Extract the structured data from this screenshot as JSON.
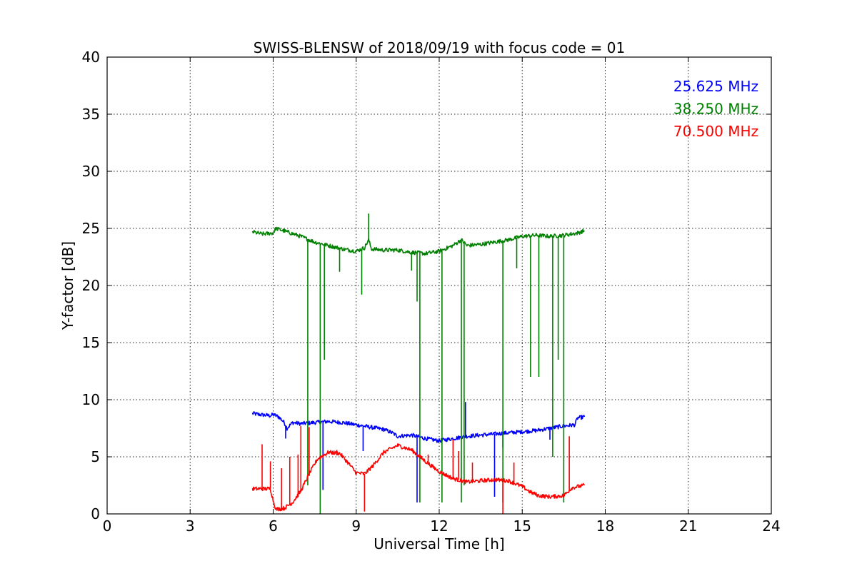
{
  "chart_data": {
    "type": "line",
    "title": "SWISS-BLENSW of 2018/09/19 with focus code = 01",
    "xlabel": "Universal Time [h]",
    "ylabel": "Y-factor [dB]",
    "xlim": [
      0,
      24
    ],
    "ylim": [
      0,
      40
    ],
    "xticks": [
      0,
      3,
      6,
      9,
      12,
      15,
      18,
      21,
      24
    ],
    "yticks": [
      0,
      5,
      10,
      15,
      20,
      25,
      30,
      35,
      40
    ],
    "grid": true,
    "legend_placement": "top-right",
    "series": [
      {
        "name": "25.625 MHz",
        "color": "#0000ff",
        "points": [
          [
            5.25,
            8.8
          ],
          [
            5.5,
            8.7
          ],
          [
            5.9,
            8.6
          ],
          [
            6.0,
            8.7
          ],
          [
            6.2,
            8.5
          ],
          [
            6.4,
            8.0
          ],
          [
            6.5,
            7.5
          ],
          [
            6.7,
            8.0
          ],
          [
            7.0,
            7.9
          ],
          [
            7.5,
            8.0
          ],
          [
            8.0,
            8.1
          ],
          [
            8.5,
            8.0
          ],
          [
            9.0,
            7.8
          ],
          [
            9.5,
            7.6
          ],
          [
            10.0,
            7.4
          ],
          [
            10.3,
            7.1
          ],
          [
            10.5,
            6.8
          ],
          [
            11.0,
            6.9
          ],
          [
            11.5,
            6.6
          ],
          [
            12.0,
            6.4
          ],
          [
            12.5,
            6.6
          ],
          [
            13.0,
            6.8
          ],
          [
            13.5,
            6.9
          ],
          [
            14.0,
            7.0
          ],
          [
            14.5,
            7.1
          ],
          [
            15.0,
            7.2
          ],
          [
            15.5,
            7.3
          ],
          [
            16.0,
            7.5
          ],
          [
            16.5,
            7.7
          ],
          [
            16.9,
            7.8
          ],
          [
            17.0,
            8.4
          ],
          [
            17.25,
            8.5
          ]
        ],
        "spikes": [
          [
            6.45,
            6.6
          ],
          [
            7.8,
            2.1
          ],
          [
            9.25,
            5.5
          ],
          [
            11.2,
            1.0
          ],
          [
            12.95,
            9.8
          ],
          [
            14.0,
            1.5
          ],
          [
            14.3,
            5.8
          ],
          [
            16.0,
            6.5
          ]
        ]
      },
      {
        "name": "38.250 MHz",
        "color": "#008000",
        "points": [
          [
            5.25,
            24.7
          ],
          [
            5.6,
            24.5
          ],
          [
            6.0,
            24.6
          ],
          [
            6.1,
            25.0
          ],
          [
            6.5,
            24.7
          ],
          [
            7.0,
            24.3
          ],
          [
            7.5,
            23.8
          ],
          [
            8.0,
            23.5
          ],
          [
            8.5,
            23.2
          ],
          [
            9.0,
            23.0
          ],
          [
            9.3,
            23.3
          ],
          [
            9.45,
            24.0
          ],
          [
            9.55,
            23.2
          ],
          [
            10.0,
            23.1
          ],
          [
            10.5,
            23.1
          ],
          [
            11.0,
            22.9
          ],
          [
            11.5,
            22.8
          ],
          [
            12.0,
            23.0
          ],
          [
            12.3,
            23.3
          ],
          [
            12.5,
            23.5
          ],
          [
            12.8,
            24.0
          ],
          [
            13.0,
            23.5
          ],
          [
            13.5,
            23.6
          ],
          [
            14.0,
            23.8
          ],
          [
            14.5,
            24.0
          ],
          [
            15.0,
            24.3
          ],
          [
            15.5,
            24.4
          ],
          [
            16.0,
            24.3
          ],
          [
            16.5,
            24.4
          ],
          [
            17.0,
            24.6
          ],
          [
            17.25,
            24.8
          ]
        ],
        "spikes": [
          [
            7.25,
            2.5
          ],
          [
            7.7,
            0.0
          ],
          [
            7.85,
            13.5
          ],
          [
            8.4,
            21.2
          ],
          [
            9.2,
            19.2
          ],
          [
            9.45,
            26.3
          ],
          [
            11.0,
            21.3
          ],
          [
            11.2,
            18.6
          ],
          [
            11.3,
            1.0
          ],
          [
            12.1,
            1.0
          ],
          [
            12.8,
            1.0
          ],
          [
            12.9,
            2.5
          ],
          [
            14.3,
            1.0
          ],
          [
            14.8,
            21.5
          ],
          [
            15.3,
            12.0
          ],
          [
            15.6,
            12.0
          ],
          [
            16.1,
            5.0
          ],
          [
            16.3,
            13.5
          ],
          [
            16.5,
            1.0
          ]
        ]
      },
      {
        "name": "70.500 MHz",
        "color": "#ff0000",
        "points": [
          [
            5.25,
            2.2
          ],
          [
            5.9,
            2.2
          ],
          [
            6.0,
            1.2
          ],
          [
            6.1,
            0.4
          ],
          [
            6.4,
            0.5
          ],
          [
            6.7,
            1.0
          ],
          [
            7.0,
            2.0
          ],
          [
            7.3,
            3.5
          ],
          [
            7.6,
            4.8
          ],
          [
            8.0,
            5.4
          ],
          [
            8.4,
            5.3
          ],
          [
            8.7,
            4.5
          ],
          [
            9.0,
            3.6
          ],
          [
            9.3,
            3.5
          ],
          [
            9.6,
            4.2
          ],
          [
            10.0,
            5.4
          ],
          [
            10.5,
            6.0
          ],
          [
            11.0,
            5.6
          ],
          [
            11.5,
            4.6
          ],
          [
            12.0,
            3.7
          ],
          [
            12.5,
            3.1
          ],
          [
            13.0,
            2.8
          ],
          [
            13.5,
            2.9
          ],
          [
            14.0,
            3.0
          ],
          [
            14.5,
            2.9
          ],
          [
            15.0,
            2.4
          ],
          [
            15.3,
            1.9
          ],
          [
            15.6,
            1.6
          ],
          [
            16.0,
            1.5
          ],
          [
            16.5,
            1.6
          ],
          [
            16.8,
            2.3
          ],
          [
            17.25,
            2.5
          ]
        ],
        "spikes": [
          [
            5.6,
            6.1
          ],
          [
            5.9,
            4.6
          ],
          [
            6.3,
            4.0
          ],
          [
            6.6,
            5.0
          ],
          [
            6.9,
            5.2
          ],
          [
            7.0,
            7.7
          ],
          [
            7.3,
            7.6
          ],
          [
            8.3,
            5.6
          ],
          [
            9.3,
            0.2
          ],
          [
            11.6,
            5.2
          ],
          [
            12.2,
            3.5
          ],
          [
            12.5,
            6.5
          ],
          [
            12.7,
            5.5
          ],
          [
            13.2,
            4.5
          ],
          [
            14.3,
            0.0
          ],
          [
            14.7,
            4.5
          ],
          [
            16.7,
            6.8
          ]
        ]
      }
    ]
  }
}
